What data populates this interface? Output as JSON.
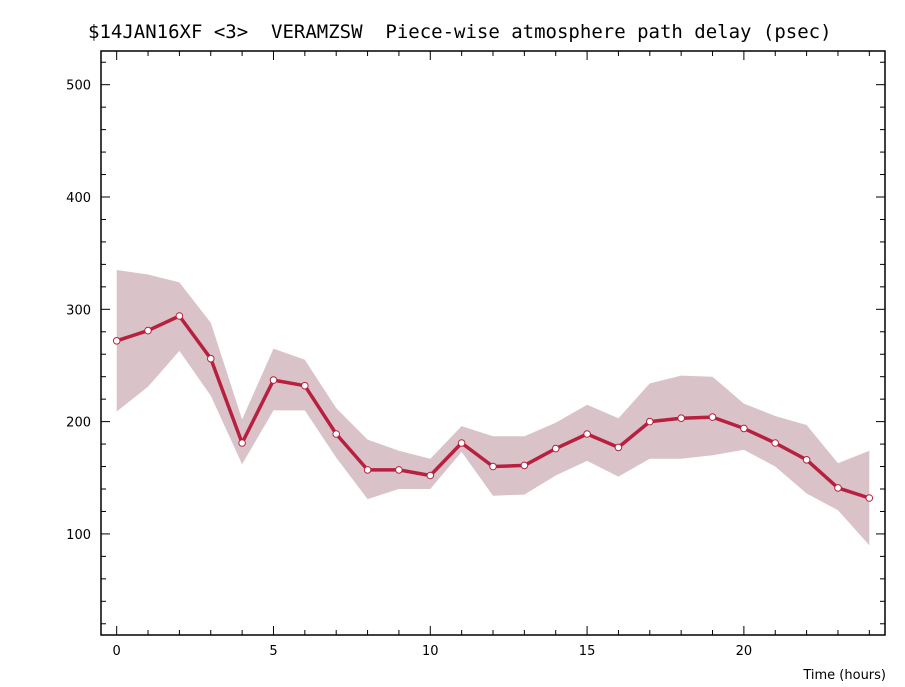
{
  "chart_data": {
    "type": "line",
    "title": "$14JAN16XF <3>  VERAMZSW  Piece-wise atmosphere path delay (psec)",
    "xlabel": "Time (hours)",
    "ylabel": "",
    "xlim": [
      -0.5,
      24.5
    ],
    "ylim": [
      10,
      530
    ],
    "x_ticks": [
      0,
      5,
      10,
      15,
      20
    ],
    "y_ticks": [
      100,
      200,
      300,
      400,
      500
    ],
    "grid": false,
    "series": [
      {
        "x": [
          0,
          1,
          2,
          3,
          4,
          5,
          6,
          7,
          8,
          9,
          10,
          11,
          12,
          13,
          14,
          15,
          16,
          17,
          18,
          19,
          20,
          21,
          22,
          23,
          24
        ],
        "values": [
          272,
          281,
          294,
          256,
          181,
          237,
          232,
          189,
          157,
          157,
          152,
          181,
          160,
          161,
          176,
          189,
          177,
          200,
          203,
          204,
          194,
          181,
          166,
          141,
          132
        ],
        "band_upper": [
          335,
          331,
          324,
          288,
          202,
          265,
          255,
          212,
          184,
          174,
          167,
          196,
          187,
          187,
          199,
          215,
          203,
          234,
          241,
          240,
          216,
          205,
          197,
          163,
          174
        ],
        "band_lower": [
          209,
          231,
          263,
          223,
          162,
          210,
          210,
          168,
          131,
          140,
          140,
          173,
          134,
          135,
          152,
          165,
          151,
          167,
          167,
          170,
          175,
          160,
          136,
          121,
          90
        ]
      }
    ],
    "colors": {
      "line": "#b8203f",
      "band": "#d9c3c9",
      "marker_fill": "#ffffff",
      "axis": "#000000"
    }
  }
}
